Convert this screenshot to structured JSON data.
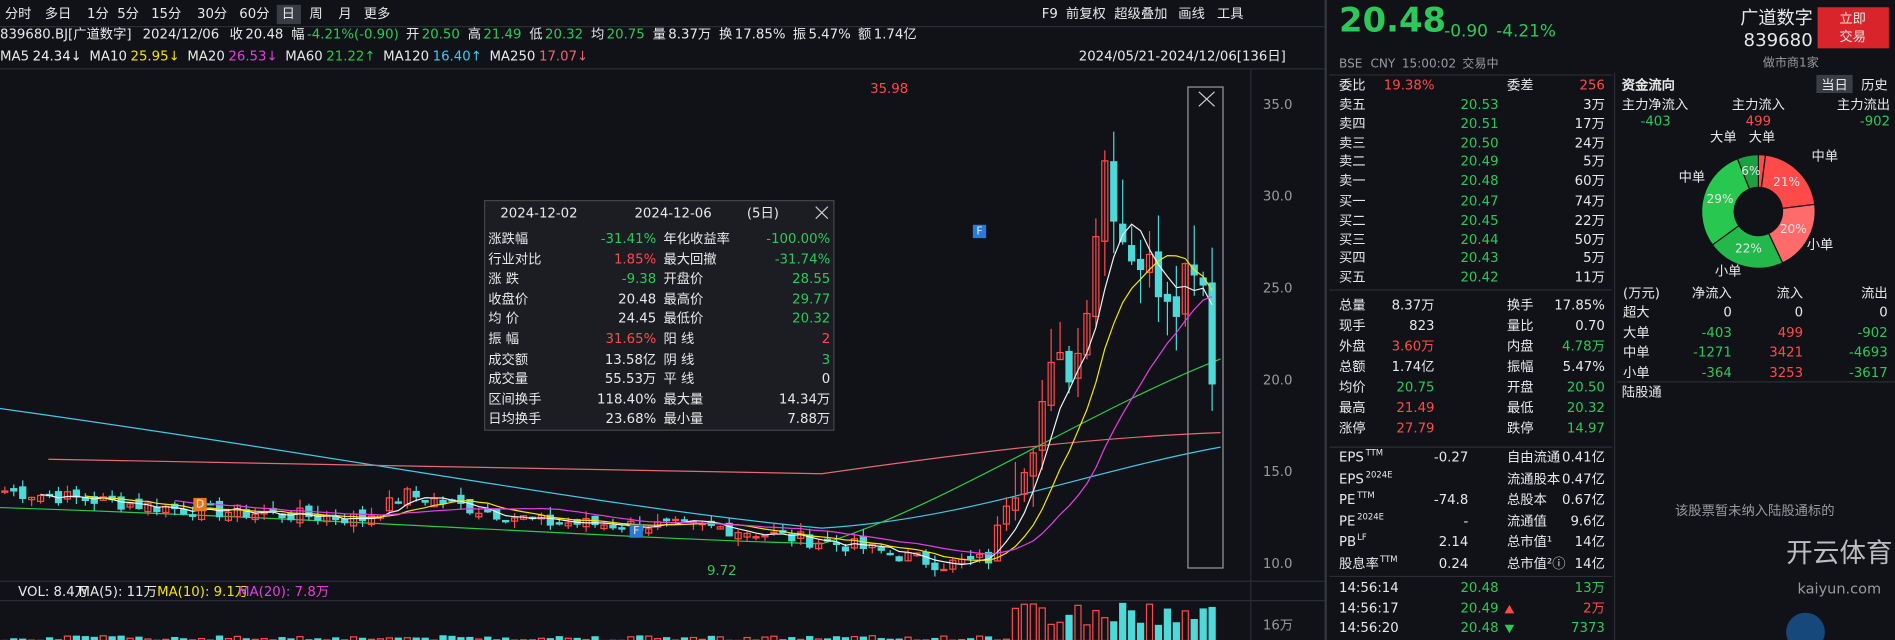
{
  "toolbar": {
    "left": [
      "分时",
      "多日",
      "1分",
      "5分",
      "15分",
      "30分",
      "60分",
      "日",
      "周",
      "月",
      "更多"
    ],
    "right": [
      "F9",
      "前复权",
      "超级叠加",
      "画线",
      "工具"
    ]
  },
  "info": {
    "code": "839680.BJ[广道数字]",
    "date": "2024/12/06",
    "items": [
      [
        "收",
        "20.48"
      ],
      [
        "幅",
        "-4.21%(-0.90)"
      ],
      [
        "开",
        "20.50"
      ],
      [
        "高",
        "21.49"
      ],
      [
        "低",
        "20.32"
      ],
      [
        "均",
        "20.75"
      ],
      [
        "量",
        "8.37万"
      ],
      [
        "换",
        "17.85%"
      ],
      [
        "振",
        "5.47%"
      ],
      [
        "额",
        "1.74亿"
      ]
    ]
  },
  "ma": [
    {
      "label": "MA5",
      "value": "24.34↓",
      "color": "#f0f0f0"
    },
    {
      "label": "MA10",
      "value": "25.95↓",
      "color": "#f5e20c"
    },
    {
      "label": "MA20",
      "value": "26.53↓",
      "color": "#e040e0"
    },
    {
      "label": "MA60",
      "value": "21.22↑",
      "color": "#2ec84a"
    },
    {
      "label": "MA120",
      "value": "16.40↑",
      "color": "#44c8e8"
    },
    {
      "label": "MA250",
      "value": "17.07↓",
      "color": "#e86870"
    }
  ],
  "range": "2024/05/21-2024/12/06[136日]",
  "yaxis": [
    "35.0",
    "30.0",
    "25.0",
    "20.0",
    "15.0",
    "10.0"
  ],
  "annotations": {
    "high": "35.98",
    "low": "9.72",
    "marks": [
      "D",
      "F",
      "F"
    ]
  },
  "popup": {
    "start": "2024-12-02",
    "end": "2024-12-06",
    "days": "(5日)",
    "rows": [
      [
        "涨跌幅",
        "-31.41%",
        "年化收益率",
        "-100.00%"
      ],
      [
        "行业对比",
        "1.85%",
        "最大回撤",
        "-31.74%"
      ],
      [
        "涨 跌",
        "-9.38",
        "开盘价",
        "28.55"
      ],
      [
        "收盘价",
        "20.48",
        "最高价",
        "29.77"
      ],
      [
        "均 价",
        "24.45",
        "最低价",
        "20.32"
      ],
      [
        "振 幅",
        "31.65%",
        "阳 线",
        "2"
      ],
      [
        "成交额",
        "13.58亿",
        "阴 线",
        "3"
      ],
      [
        "成交量",
        "55.53万",
        "平 线",
        "0"
      ],
      [
        "区间换手",
        "118.40%",
        "最大量",
        "14.34万"
      ],
      [
        "日均换手",
        "23.68%",
        "最小量",
        "7.88万"
      ]
    ]
  },
  "volume": {
    "labels": [
      "VOL: 8.4万",
      "MA(5): 11万",
      "MA(10): 9.1万",
      "MA(20): 7.8万"
    ],
    "axis": "16万"
  },
  "quote": {
    "price": "20.48",
    "change": "-0.90",
    "pct": "-4.21%",
    "name": "广道数字",
    "code": "839680",
    "button": [
      "立即",
      "交易"
    ],
    "market": [
      "BSE",
      "CNY",
      "15:00:02",
      "交易中"
    ],
    "maker": "做市商1家",
    "ratio": [
      "委比",
      "19.38%",
      "委差",
      "256"
    ]
  },
  "asks": [
    [
      "卖五",
      "20.53",
      "3万"
    ],
    [
      "卖四",
      "20.51",
      "17万"
    ],
    [
      "卖三",
      "20.50",
      "24万"
    ],
    [
      "卖二",
      "20.49",
      "5万"
    ],
    [
      "卖一",
      "20.48",
      "60万"
    ]
  ],
  "bids": [
    [
      "买一",
      "20.47",
      "74万"
    ],
    [
      "买二",
      "20.45",
      "22万"
    ],
    [
      "买三",
      "20.44",
      "50万"
    ],
    [
      "买四",
      "20.43",
      "5万"
    ],
    [
      "买五",
      "20.42",
      "11万"
    ]
  ],
  "stats": [
    [
      "总量",
      "8.37万",
      "换手",
      "17.85%"
    ],
    [
      "现手",
      "823",
      "量比",
      "0.70"
    ],
    [
      "外盘",
      "3.60万",
      "内盘",
      "4.78万"
    ],
    [
      "总额",
      "1.74亿",
      "振幅",
      "5.47%"
    ],
    [
      "均价",
      "20.75",
      "开盘",
      "20.50"
    ],
    [
      "最高",
      "21.49",
      "最低",
      "20.32"
    ],
    [
      "涨停",
      "27.79",
      "跌停",
      "14.97"
    ]
  ],
  "fin": [
    {
      "label": "EPS",
      "sup": "TTM",
      "value": "-0.27",
      "label2": "自由流通",
      "value2": "0.41亿"
    },
    {
      "label": "EPS",
      "sup": "2024E",
      "label2": "流通股本",
      "value2": "0.47亿"
    },
    {
      "label": "PE",
      "sup": "TTM",
      "value": "-74.8",
      "label2": "总股本",
      "value2": "0.67亿"
    },
    {
      "label": "PE",
      "sup": "2024E",
      "value": "-",
      "label2": "流通值",
      "value2": "9.6亿"
    },
    {
      "label": "PB",
      "sup": "LF",
      "value": "2.14",
      "label2": "总市值¹",
      "value2": "14亿"
    },
    {
      "label": "股息率",
      "sup": "TTM",
      "value": "0.24",
      "label2": "总市值²ⓘ",
      "value2": "14亿"
    }
  ],
  "trades": [
    [
      "14:56:14",
      "20.48",
      "13万"
    ],
    [
      "14:56:17",
      "20.49",
      "2万"
    ],
    [
      "14:56:20",
      "20.48",
      "7373"
    ]
  ],
  "capital": {
    "title": "资金流向",
    "tabs": [
      "当日",
      "历史"
    ],
    "main": [
      [
        "主力净流入",
        "-403"
      ],
      [
        "主力流入",
        "499"
      ],
      [
        "主力流出",
        "-902"
      ]
    ],
    "pie": [
      {
        "name": "大单",
        "value": 2,
        "label": null,
        "color": "#ff4a4a"
      },
      {
        "name": "中单",
        "value": 21,
        "label": "21%",
        "color": "#ff4a4a"
      },
      {
        "name": "小单",
        "value": 20,
        "label": "20%",
        "color": "#ff6a6a"
      },
      {
        "name": "小单",
        "value": 22,
        "label": "22%",
        "color": "#22b84a"
      },
      {
        "name": "中单",
        "value": 29,
        "label": "29%",
        "color": "#28c850"
      },
      {
        "name": "大单",
        "value": 6,
        "label": "6%",
        "color": "#1ea040"
      }
    ],
    "header": [
      "(万元)",
      "净流入",
      "流入",
      "流出"
    ],
    "rows": [
      [
        "超大",
        "0",
        "0",
        "0"
      ],
      [
        "大单",
        "-403",
        "499",
        "-902"
      ],
      [
        "中单",
        "-1271",
        "3421",
        "-4693"
      ],
      [
        "小单",
        "-364",
        "3253",
        "-3617"
      ]
    ]
  },
  "hk": {
    "title": "陆股通",
    "note": "该股票暂未纳入陆股通标的"
  },
  "watermark": [
    "开云体育",
    "kaiyun.com"
  ]
}
